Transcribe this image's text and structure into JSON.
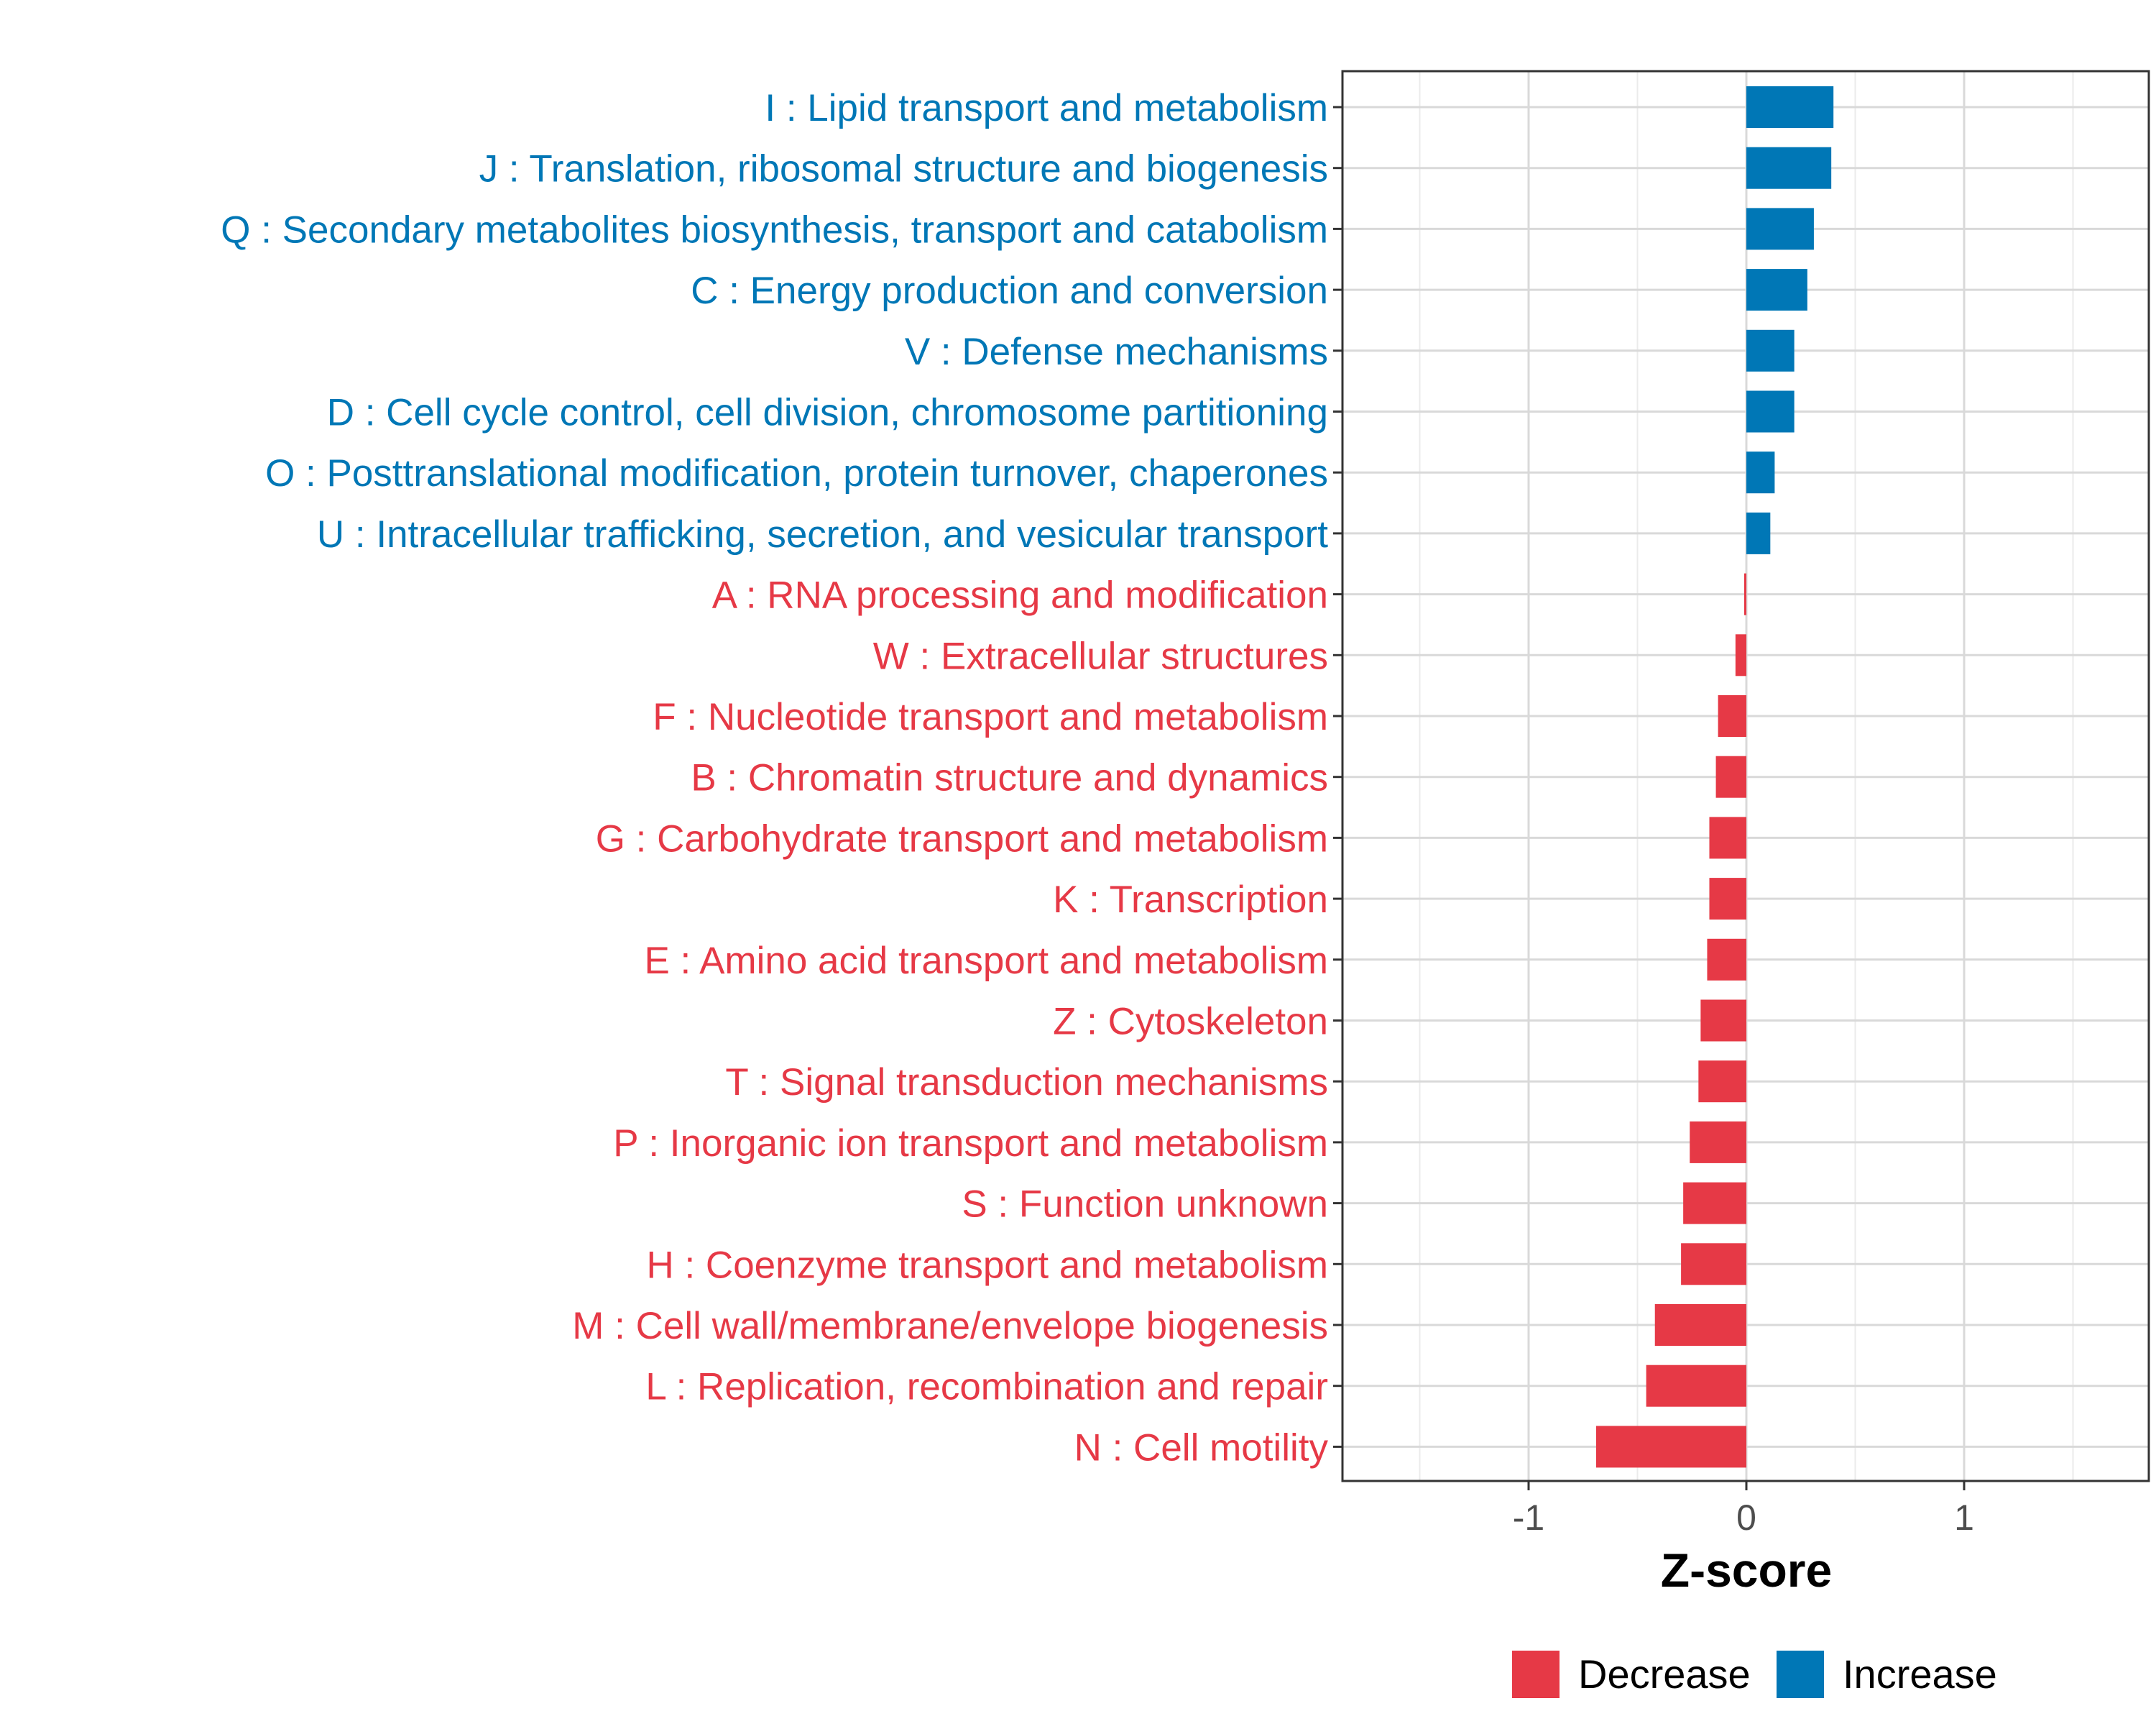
{
  "chart_data": {
    "type": "bar",
    "orientation": "horizontal",
    "title": "",
    "xlabel": "Z-score",
    "ylabel": "",
    "xlim": [
      -1.85,
      1.85
    ],
    "xticks": [
      -1,
      0,
      1
    ],
    "xtick_labels": [
      "-1",
      "0",
      "1"
    ],
    "grid": true,
    "legend_position": "bottom",
    "legend": [
      {
        "name": "Decrease",
        "color": "#E63946"
      },
      {
        "name": "Increase",
        "color": "#0077B6"
      }
    ],
    "categories": [
      "I : Lipid transport and metabolism",
      "J : Translation, ribosomal structure and biogenesis",
      "Q : Secondary metabolites biosynthesis, transport and catabolism",
      "C : Energy production and conversion",
      "V : Defense mechanisms",
      "D : Cell cycle control, cell division, chromosome partitioning",
      "O : Posttranslational modification, protein turnover, chaperones",
      "U : Intracellular trafficking, secretion, and vesicular transport",
      "A : RNA processing and modification",
      "W : Extracellular structures",
      "F : Nucleotide transport and metabolism",
      "B : Chromatin structure and dynamics",
      "G : Carbohydrate transport and metabolism",
      "K : Transcription",
      "E : Amino acid transport and metabolism",
      "Z : Cytoskeleton",
      "T : Signal transduction mechanisms",
      "P : Inorganic ion transport and metabolism",
      "S : Function unknown",
      "H : Coenzyme transport and metabolism",
      "M : Cell wall/membrane/envelope biogenesis",
      "L : Replication, recombination and repair",
      "N : Cell motility"
    ],
    "values": [
      0.4,
      0.39,
      0.31,
      0.28,
      0.22,
      0.22,
      0.13,
      0.11,
      -0.01,
      -0.05,
      -0.13,
      -0.14,
      -0.17,
      -0.17,
      -0.18,
      -0.21,
      -0.22,
      -0.26,
      -0.29,
      -0.3,
      -0.42,
      -0.46,
      -0.69
    ],
    "direction": [
      "Increase",
      "Increase",
      "Increase",
      "Increase",
      "Increase",
      "Increase",
      "Increase",
      "Increase",
      "Decrease",
      "Decrease",
      "Decrease",
      "Decrease",
      "Decrease",
      "Decrease",
      "Decrease",
      "Decrease",
      "Decrease",
      "Decrease",
      "Decrease",
      "Decrease",
      "Decrease",
      "Decrease",
      "Decrease"
    ]
  }
}
